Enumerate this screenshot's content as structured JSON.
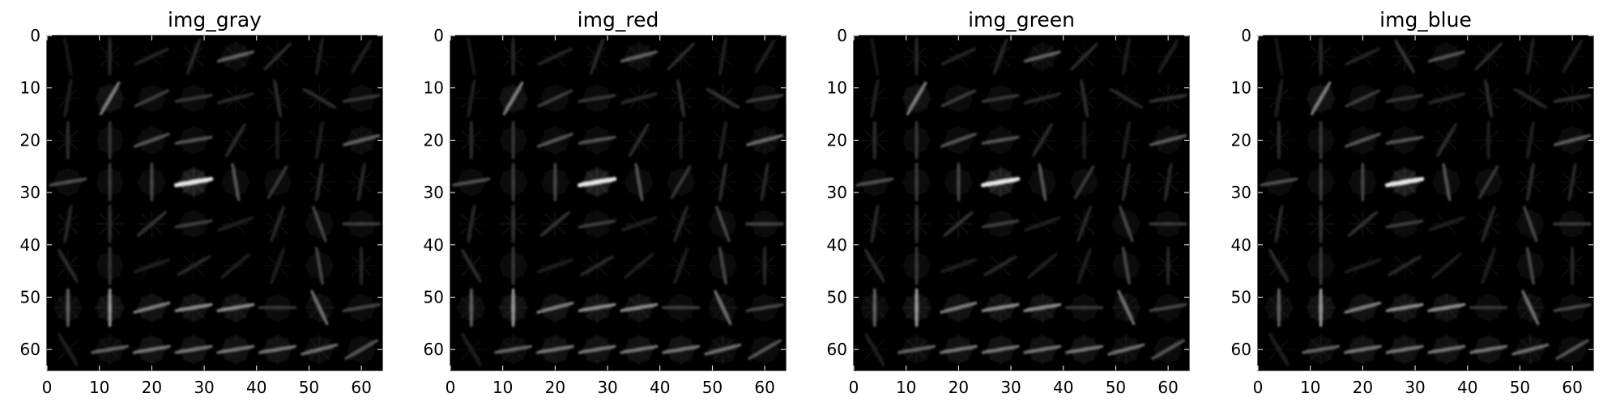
{
  "chart_data": [
    {
      "type": "heatmap",
      "title": "img_gray",
      "xlim": [
        0,
        64
      ],
      "ylim": [
        64,
        0
      ],
      "xticks": [
        0,
        10,
        20,
        30,
        40,
        50,
        60
      ],
      "yticks": [
        0,
        10,
        20,
        30,
        40,
        50,
        60
      ],
      "colormap": "gray",
      "cell_size": 8,
      "grid": false,
      "hog_cells": [
        [
          [
            0.1,
            100
          ],
          [
            0.14,
            90
          ],
          [
            0.13,
            25
          ],
          [
            0.14,
            70
          ],
          [
            0.35,
            15
          ],
          [
            0.16,
            45
          ],
          [
            0.12,
            80
          ],
          [
            0.12,
            60
          ]
        ],
        [
          [
            0.12,
            80
          ],
          [
            0.45,
            60
          ],
          [
            0.22,
            25
          ],
          [
            0.2,
            10
          ],
          [
            0.14,
            15
          ],
          [
            0.16,
            100
          ],
          [
            0.16,
            150
          ],
          [
            0.2,
            10
          ]
        ],
        [
          [
            0.16,
            90
          ],
          [
            0.2,
            90
          ],
          [
            0.3,
            20
          ],
          [
            0.3,
            10
          ],
          [
            0.16,
            60
          ],
          [
            0.12,
            90
          ],
          [
            0.12,
            80
          ],
          [
            0.35,
            15
          ]
        ],
        [
          [
            0.28,
            10
          ],
          [
            0.22,
            90
          ],
          [
            0.26,
            90
          ],
          [
            0.8,
            10
          ],
          [
            0.3,
            100
          ],
          [
            0.2,
            60
          ],
          [
            0.16,
            80
          ],
          [
            0.14,
            80
          ]
        ],
        [
          [
            0.14,
            80
          ],
          [
            0.18,
            90
          ],
          [
            0.18,
            40
          ],
          [
            0.22,
            10
          ],
          [
            0.12,
            20
          ],
          [
            0.14,
            70
          ],
          [
            0.25,
            110
          ],
          [
            0.22,
            0
          ]
        ],
        [
          [
            0.16,
            120
          ],
          [
            0.2,
            90
          ],
          [
            0.12,
            20
          ],
          [
            0.14,
            30
          ],
          [
            0.12,
            40
          ],
          [
            0.12,
            70
          ],
          [
            0.25,
            100
          ],
          [
            0.14,
            90
          ]
        ],
        [
          [
            0.35,
            90
          ],
          [
            0.55,
            90
          ],
          [
            0.45,
            15
          ],
          [
            0.5,
            10
          ],
          [
            0.5,
            10
          ],
          [
            0.2,
            0
          ],
          [
            0.4,
            115
          ],
          [
            0.25,
            10
          ]
        ],
        [
          [
            0.12,
            120
          ],
          [
            0.35,
            10
          ],
          [
            0.42,
            10
          ],
          [
            0.42,
            10
          ],
          [
            0.42,
            10
          ],
          [
            0.42,
            10
          ],
          [
            0.4,
            15
          ],
          [
            0.3,
            30
          ]
        ]
      ]
    },
    {
      "type": "heatmap",
      "title": "img_red",
      "xlim": [
        0,
        64
      ],
      "ylim": [
        64,
        0
      ],
      "xticks": [
        0,
        10,
        20,
        30,
        40,
        50,
        60
      ],
      "yticks": [
        0,
        10,
        20,
        30,
        40,
        50,
        60
      ],
      "colormap": "gray",
      "cell_size": 8,
      "grid": false,
      "hog_cells": [
        [
          [
            0.1,
            100
          ],
          [
            0.14,
            90
          ],
          [
            0.13,
            25
          ],
          [
            0.14,
            70
          ],
          [
            0.35,
            15
          ],
          [
            0.16,
            45
          ],
          [
            0.12,
            80
          ],
          [
            0.12,
            60
          ]
        ],
        [
          [
            0.12,
            80
          ],
          [
            0.45,
            60
          ],
          [
            0.22,
            25
          ],
          [
            0.2,
            10
          ],
          [
            0.14,
            15
          ],
          [
            0.16,
            100
          ],
          [
            0.18,
            150
          ],
          [
            0.22,
            10
          ]
        ],
        [
          [
            0.16,
            90
          ],
          [
            0.2,
            90
          ],
          [
            0.3,
            20
          ],
          [
            0.3,
            10
          ],
          [
            0.16,
            60
          ],
          [
            0.12,
            90
          ],
          [
            0.12,
            80
          ],
          [
            0.38,
            15
          ]
        ],
        [
          [
            0.28,
            10
          ],
          [
            0.22,
            90
          ],
          [
            0.26,
            90
          ],
          [
            0.8,
            10
          ],
          [
            0.3,
            100
          ],
          [
            0.2,
            60
          ],
          [
            0.16,
            80
          ],
          [
            0.14,
            80
          ]
        ],
        [
          [
            0.14,
            80
          ],
          [
            0.18,
            90
          ],
          [
            0.18,
            40
          ],
          [
            0.22,
            10
          ],
          [
            0.12,
            20
          ],
          [
            0.14,
            70
          ],
          [
            0.25,
            110
          ],
          [
            0.24,
            0
          ]
        ],
        [
          [
            0.16,
            120
          ],
          [
            0.2,
            90
          ],
          [
            0.12,
            20
          ],
          [
            0.14,
            30
          ],
          [
            0.12,
            40
          ],
          [
            0.12,
            70
          ],
          [
            0.25,
            100
          ],
          [
            0.14,
            90
          ]
        ],
        [
          [
            0.35,
            90
          ],
          [
            0.55,
            90
          ],
          [
            0.45,
            15
          ],
          [
            0.5,
            10
          ],
          [
            0.5,
            10
          ],
          [
            0.22,
            0
          ],
          [
            0.4,
            115
          ],
          [
            0.25,
            10
          ]
        ],
        [
          [
            0.12,
            120
          ],
          [
            0.35,
            10
          ],
          [
            0.42,
            10
          ],
          [
            0.42,
            10
          ],
          [
            0.42,
            10
          ],
          [
            0.42,
            10
          ],
          [
            0.4,
            15
          ],
          [
            0.3,
            30
          ]
        ]
      ]
    },
    {
      "type": "heatmap",
      "title": "img_green",
      "xlim": [
        0,
        64
      ],
      "ylim": [
        64,
        0
      ],
      "xticks": [
        0,
        10,
        20,
        30,
        40,
        50,
        60
      ],
      "yticks": [
        0,
        10,
        20,
        30,
        40,
        50,
        60
      ],
      "colormap": "gray",
      "cell_size": 8,
      "grid": false,
      "hog_cells": [
        [
          [
            0.1,
            100
          ],
          [
            0.14,
            90
          ],
          [
            0.13,
            25
          ],
          [
            0.14,
            70
          ],
          [
            0.35,
            15
          ],
          [
            0.16,
            45
          ],
          [
            0.12,
            80
          ],
          [
            0.12,
            60
          ]
        ],
        [
          [
            0.12,
            80
          ],
          [
            0.45,
            60
          ],
          [
            0.22,
            25
          ],
          [
            0.2,
            10
          ],
          [
            0.14,
            15
          ],
          [
            0.16,
            100
          ],
          [
            0.14,
            150
          ],
          [
            0.18,
            10
          ]
        ],
        [
          [
            0.16,
            90
          ],
          [
            0.2,
            90
          ],
          [
            0.3,
            20
          ],
          [
            0.3,
            10
          ],
          [
            0.16,
            60
          ],
          [
            0.12,
            90
          ],
          [
            0.12,
            80
          ],
          [
            0.32,
            15
          ]
        ],
        [
          [
            0.28,
            10
          ],
          [
            0.22,
            90
          ],
          [
            0.26,
            90
          ],
          [
            0.8,
            10
          ],
          [
            0.3,
            100
          ],
          [
            0.2,
            60
          ],
          [
            0.16,
            80
          ],
          [
            0.14,
            80
          ]
        ],
        [
          [
            0.14,
            80
          ],
          [
            0.18,
            90
          ],
          [
            0.18,
            40
          ],
          [
            0.22,
            10
          ],
          [
            0.12,
            20
          ],
          [
            0.14,
            70
          ],
          [
            0.25,
            110
          ],
          [
            0.2,
            0
          ]
        ],
        [
          [
            0.16,
            120
          ],
          [
            0.2,
            90
          ],
          [
            0.12,
            20
          ],
          [
            0.14,
            30
          ],
          [
            0.12,
            40
          ],
          [
            0.12,
            70
          ],
          [
            0.25,
            100
          ],
          [
            0.14,
            90
          ]
        ],
        [
          [
            0.35,
            90
          ],
          [
            0.55,
            90
          ],
          [
            0.45,
            15
          ],
          [
            0.5,
            10
          ],
          [
            0.5,
            10
          ],
          [
            0.2,
            0
          ],
          [
            0.4,
            115
          ],
          [
            0.25,
            10
          ]
        ],
        [
          [
            0.12,
            120
          ],
          [
            0.35,
            10
          ],
          [
            0.42,
            10
          ],
          [
            0.42,
            10
          ],
          [
            0.42,
            10
          ],
          [
            0.42,
            10
          ],
          [
            0.4,
            15
          ],
          [
            0.3,
            30
          ]
        ]
      ]
    },
    {
      "type": "heatmap",
      "title": "img_blue",
      "xlim": [
        0,
        64
      ],
      "ylim": [
        64,
        0
      ],
      "xticks": [
        0,
        10,
        20,
        30,
        40,
        50,
        60
      ],
      "yticks": [
        0,
        10,
        20,
        30,
        40,
        50,
        60
      ],
      "colormap": "gray",
      "cell_size": 8,
      "grid": false,
      "hog_cells": [
        [
          [
            0.1,
            100
          ],
          [
            0.14,
            90
          ],
          [
            0.13,
            25
          ],
          [
            0.18,
            120
          ],
          [
            0.3,
            15
          ],
          [
            0.16,
            45
          ],
          [
            0.12,
            80
          ],
          [
            0.12,
            60
          ]
        ],
        [
          [
            0.12,
            80
          ],
          [
            0.45,
            60
          ],
          [
            0.22,
            25
          ],
          [
            0.2,
            10
          ],
          [
            0.14,
            15
          ],
          [
            0.16,
            100
          ],
          [
            0.14,
            150
          ],
          [
            0.18,
            10
          ]
        ],
        [
          [
            0.16,
            90
          ],
          [
            0.2,
            90
          ],
          [
            0.3,
            20
          ],
          [
            0.3,
            10
          ],
          [
            0.16,
            60
          ],
          [
            0.12,
            90
          ],
          [
            0.12,
            80
          ],
          [
            0.32,
            15
          ]
        ],
        [
          [
            0.28,
            10
          ],
          [
            0.22,
            90
          ],
          [
            0.26,
            90
          ],
          [
            0.8,
            10
          ],
          [
            0.3,
            100
          ],
          [
            0.2,
            60
          ],
          [
            0.16,
            80
          ],
          [
            0.14,
            80
          ]
        ],
        [
          [
            0.14,
            80
          ],
          [
            0.18,
            90
          ],
          [
            0.18,
            40
          ],
          [
            0.22,
            10
          ],
          [
            0.12,
            20
          ],
          [
            0.14,
            70
          ],
          [
            0.25,
            110
          ],
          [
            0.2,
            0
          ]
        ],
        [
          [
            0.16,
            120
          ],
          [
            0.2,
            90
          ],
          [
            0.12,
            20
          ],
          [
            0.14,
            30
          ],
          [
            0.12,
            40
          ],
          [
            0.12,
            70
          ],
          [
            0.25,
            100
          ],
          [
            0.14,
            90
          ]
        ],
        [
          [
            0.35,
            90
          ],
          [
            0.55,
            90
          ],
          [
            0.45,
            15
          ],
          [
            0.5,
            10
          ],
          [
            0.5,
            10
          ],
          [
            0.2,
            0
          ],
          [
            0.4,
            115
          ],
          [
            0.25,
            10
          ]
        ],
        [
          [
            0.12,
            120
          ],
          [
            0.35,
            10
          ],
          [
            0.42,
            10
          ],
          [
            0.42,
            10
          ],
          [
            0.42,
            10
          ],
          [
            0.42,
            10
          ],
          [
            0.4,
            15
          ],
          [
            0.3,
            30
          ]
        ]
      ]
    }
  ]
}
